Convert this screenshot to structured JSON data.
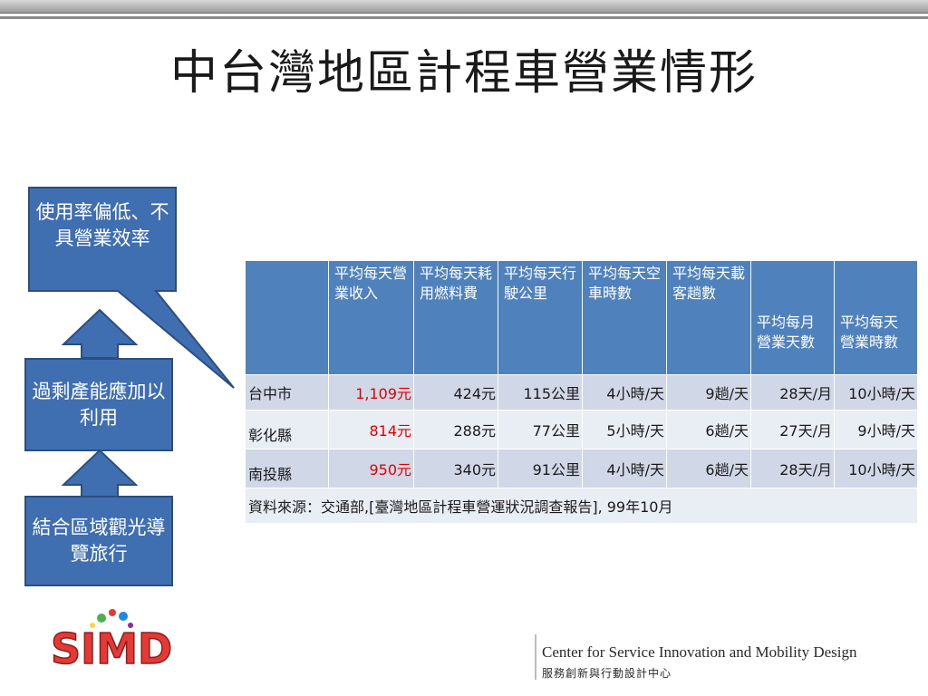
{
  "slide": {
    "title": "中台灣地區計程車營業情形"
  },
  "flow": {
    "box1": "使用率偏低、不具營業效率",
    "box2": "過剩產能應加以利用",
    "box3": "結合區域觀光導覽旅行",
    "box_color": "#3f6fb0",
    "box_border": "#2a4e7f"
  },
  "table": {
    "headers": [
      "",
      "平均每天營業收入",
      "平均每天耗用燃料費",
      "平均每天行駛公里",
      "平均每天空車時數",
      "平均每天載客趟數",
      "平均每月營業天數",
      "平均每天營業時數"
    ],
    "rows": [
      [
        "台中市",
        "1,109元",
        "424元",
        "115公里",
        "4小時/天",
        "9趟/天",
        "28天/月",
        "10小時/天"
      ],
      [
        "彰化縣",
        "814元",
        "288元",
        "77公里",
        "5小時/天",
        "6趟/天",
        "27天/月",
        "9小時/天"
      ],
      [
        "南投縣",
        "950元",
        "340元",
        "91公里",
        "4小時/天",
        "6趟/天",
        "28天/月",
        "10小時/天"
      ]
    ],
    "source": "資料來源：交通部,[臺灣地區計程車營運狀況調查報告], 99年10月",
    "header_color": "#4f81bd",
    "highlight_color": "#e00000"
  },
  "footer": {
    "logo_text": "SIMD",
    "org_en": "Center for Service Innovation and Mobility Design",
    "org_zh": "服務創新與行動設計中心"
  }
}
